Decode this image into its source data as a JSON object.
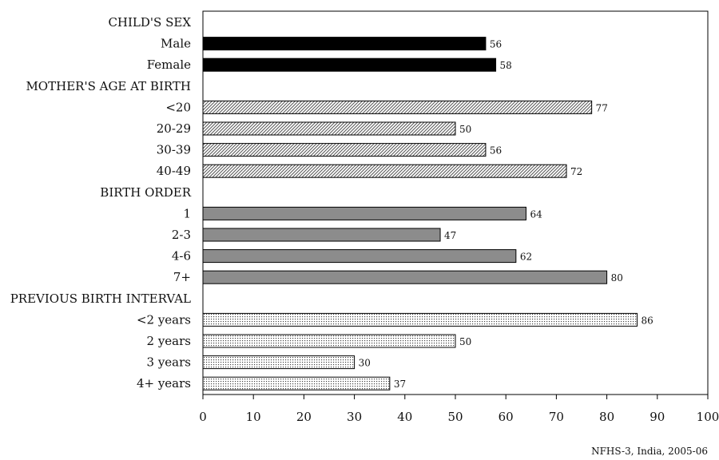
{
  "chart_data": {
    "type": "bar",
    "orientation": "horizontal",
    "xlim": [
      0,
      100
    ],
    "xticks": [
      0,
      10,
      20,
      30,
      40,
      50,
      60,
      70,
      80,
      90,
      100
    ],
    "grid": false,
    "groups": [
      {
        "heading": "CHILD'S SEX",
        "style": "solid-black",
        "color": "#000000",
        "items": [
          {
            "label": "Male",
            "value": 56
          },
          {
            "label": "Female",
            "value": 58
          }
        ]
      },
      {
        "heading": "MOTHER'S AGE AT BIRTH",
        "style": "diagonal-hatch",
        "color": "#444444",
        "items": [
          {
            "label": "<20",
            "value": 77
          },
          {
            "label": "20-29",
            "value": 50
          },
          {
            "label": "30-39",
            "value": 56
          },
          {
            "label": "40-49",
            "value": 72
          }
        ]
      },
      {
        "heading": "BIRTH ORDER",
        "style": "solid-gray",
        "color": "#8c8c8c",
        "items": [
          {
            "label": "1",
            "value": 64
          },
          {
            "label": "2-3",
            "value": 47
          },
          {
            "label": "4-6",
            "value": 62
          },
          {
            "label": "7+",
            "value": 80
          }
        ]
      },
      {
        "heading": "PREVIOUS BIRTH INTERVAL",
        "style": "dotted",
        "color": "#555555",
        "items": [
          {
            "label": "<2 years",
            "value": 86
          },
          {
            "label": "2 years",
            "value": 50
          },
          {
            "label": "3 years",
            "value": 30
          },
          {
            "label": "4+ years",
            "value": 37
          }
        ]
      }
    ]
  },
  "source_note": "NFHS-3, India, 2005-06"
}
